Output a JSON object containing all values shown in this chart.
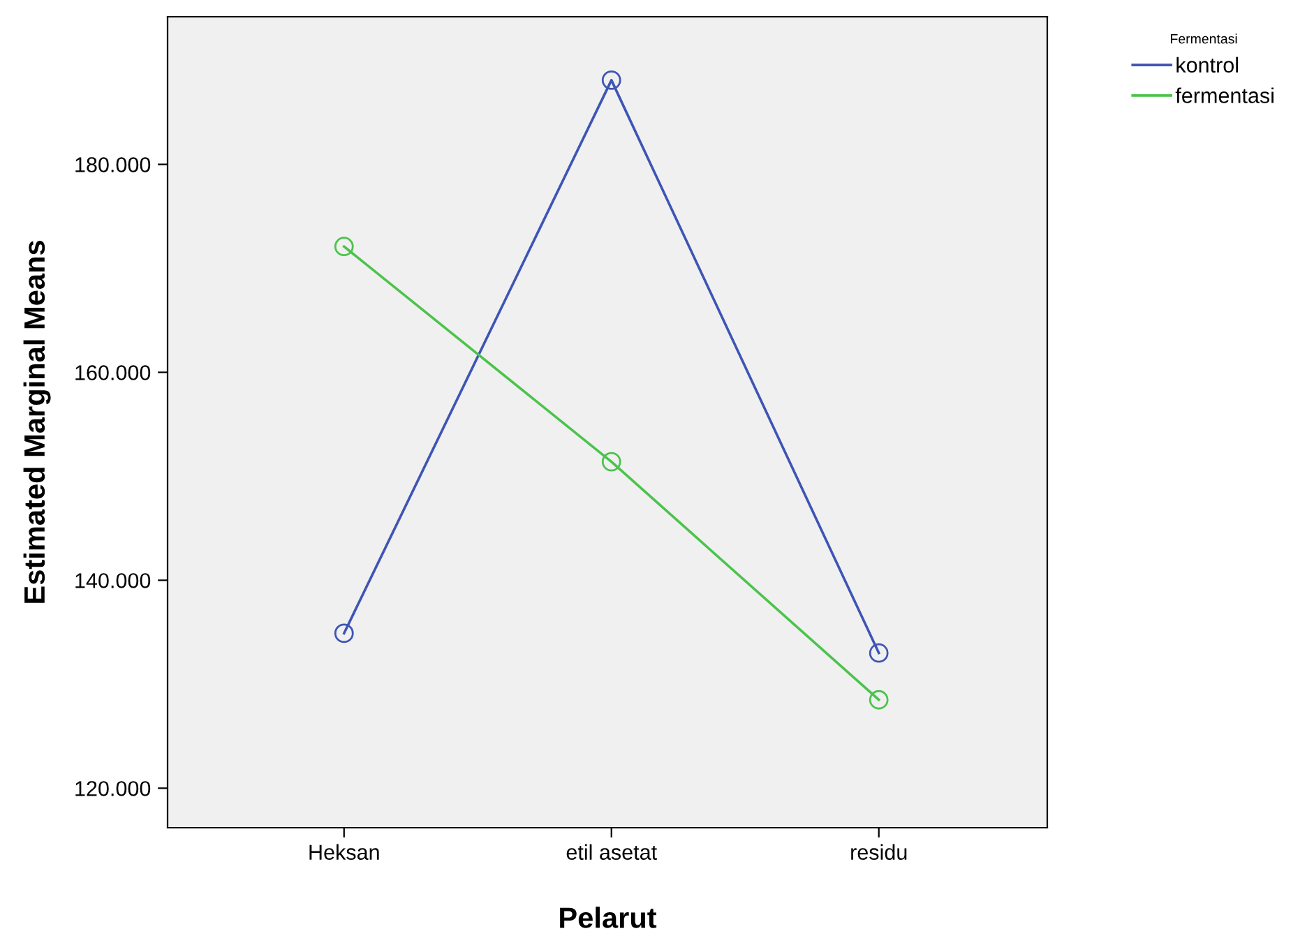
{
  "chart_data": {
    "type": "line",
    "xlabel": "Pelarut",
    "ylabel": "Estimated Marginal Means",
    "legend_title": "Fermentasi",
    "categories": [
      "Heksan",
      "etil asetat",
      "residu"
    ],
    "series": [
      {
        "name": "kontrol",
        "color": "#3e55b5",
        "values": [
          134.9,
          188.1,
          133.0
        ]
      },
      {
        "name": "fermentasi",
        "color": "#4cc34c",
        "values": [
          172.1,
          151.4,
          128.5
        ]
      }
    ],
    "ylim": [
      116.2,
      194.2
    ],
    "yticks": [
      {
        "value": 120,
        "label": "120.000"
      },
      {
        "value": 140,
        "label": "140.000"
      },
      {
        "value": 160,
        "label": "160.000"
      },
      {
        "value": 180,
        "label": "180.000"
      }
    ],
    "grid": false,
    "legend": "top right",
    "marker": "circle",
    "line_style": "solid"
  }
}
